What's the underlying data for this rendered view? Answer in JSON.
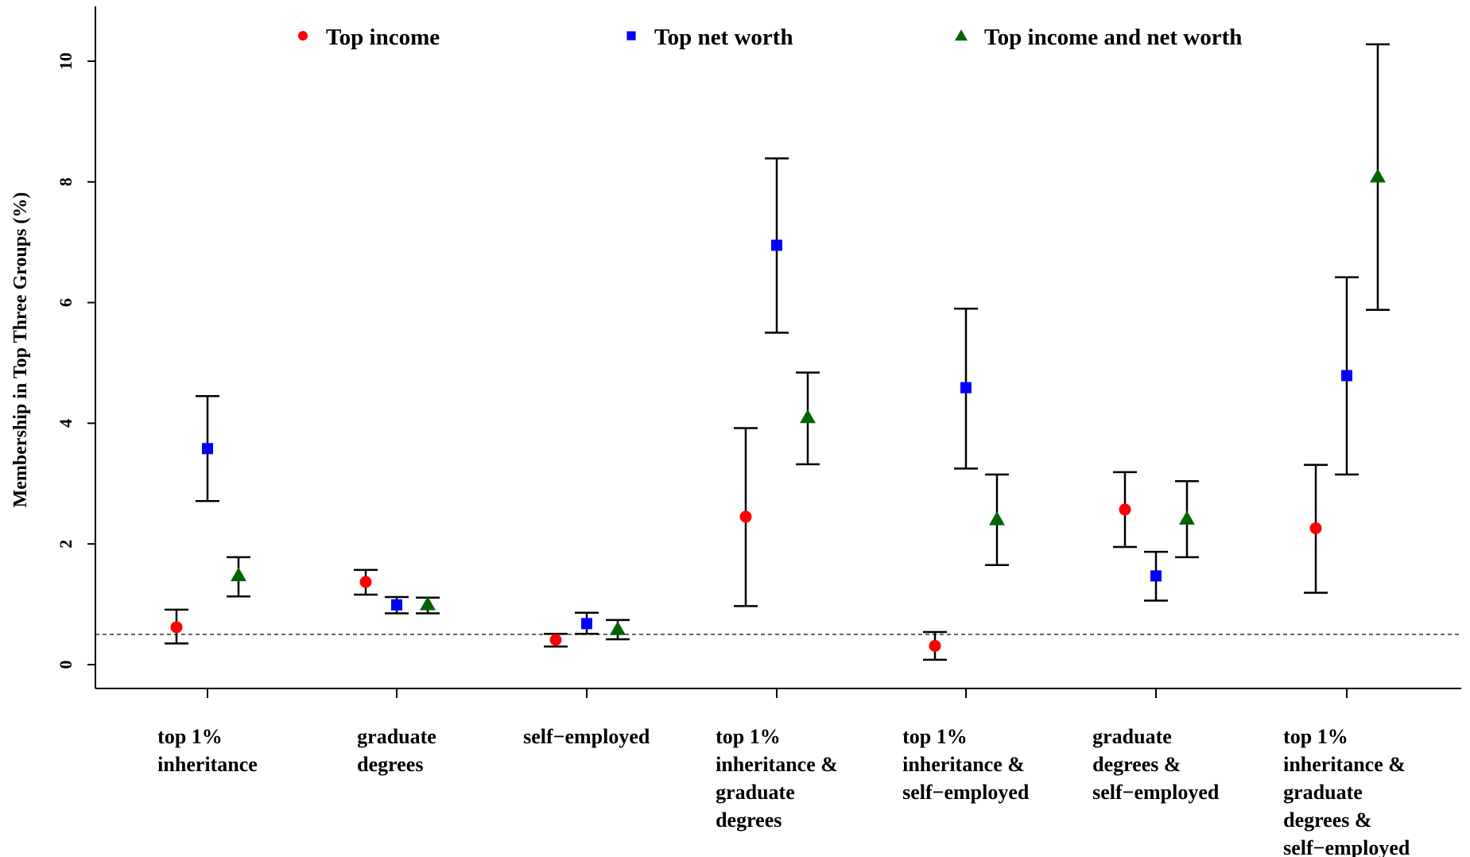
{
  "chart_data": {
    "type": "scatter",
    "subtype": "point estimates with error bars",
    "ylabel": "Membership in Top Three Groups (%)",
    "xlabel": "",
    "ylim": [
      0,
      10.5
    ],
    "yticks": [
      "0",
      "2",
      "4",
      "6",
      "8",
      "10"
    ],
    "reference_line": {
      "y": 0.5,
      "style": "dashed"
    },
    "legend_position": "top",
    "categories": [
      [
        "top 1%",
        "inheritance"
      ],
      [
        "graduate",
        "degrees"
      ],
      [
        "self−employed"
      ],
      [
        "top 1%",
        "inheritance &",
        "graduate",
        "degrees"
      ],
      [
        "top 1%",
        "inheritance &",
        "self−employed"
      ],
      [
        "graduate",
        "degrees &",
        "self−employed"
      ],
      [
        "top 1%",
        "inheritance &",
        "graduate",
        "degrees &",
        "self−employed"
      ]
    ],
    "series": [
      {
        "name": "Top income",
        "marker": "circle",
        "color": "#ff0000",
        "values": [
          0.62,
          1.37,
          0.41,
          2.45,
          0.31,
          2.57,
          2.26
        ],
        "lower": [
          0.35,
          1.16,
          0.3,
          0.97,
          0.08,
          1.95,
          1.19
        ],
        "upper": [
          0.91,
          1.57,
          0.51,
          3.92,
          0.54,
          3.19,
          3.31
        ]
      },
      {
        "name": "Top net worth",
        "marker": "square",
        "color": "#0000ff",
        "values": [
          3.58,
          0.99,
          0.68,
          6.95,
          4.59,
          1.47,
          4.79
        ],
        "lower": [
          2.71,
          0.85,
          0.51,
          5.5,
          3.25,
          1.06,
          3.15
        ],
        "upper": [
          4.45,
          1.12,
          0.86,
          8.39,
          5.9,
          1.87,
          6.42
        ]
      },
      {
        "name": "Top income and net worth",
        "marker": "triangle",
        "color": "#006400",
        "values": [
          1.48,
          1.0,
          0.59,
          4.1,
          2.41,
          2.42,
          8.09
        ],
        "lower": [
          1.13,
          0.85,
          0.42,
          3.32,
          1.65,
          1.78,
          5.88
        ],
        "upper": [
          1.78,
          1.11,
          0.74,
          4.84,
          3.15,
          3.04,
          10.28
        ]
      }
    ]
  }
}
